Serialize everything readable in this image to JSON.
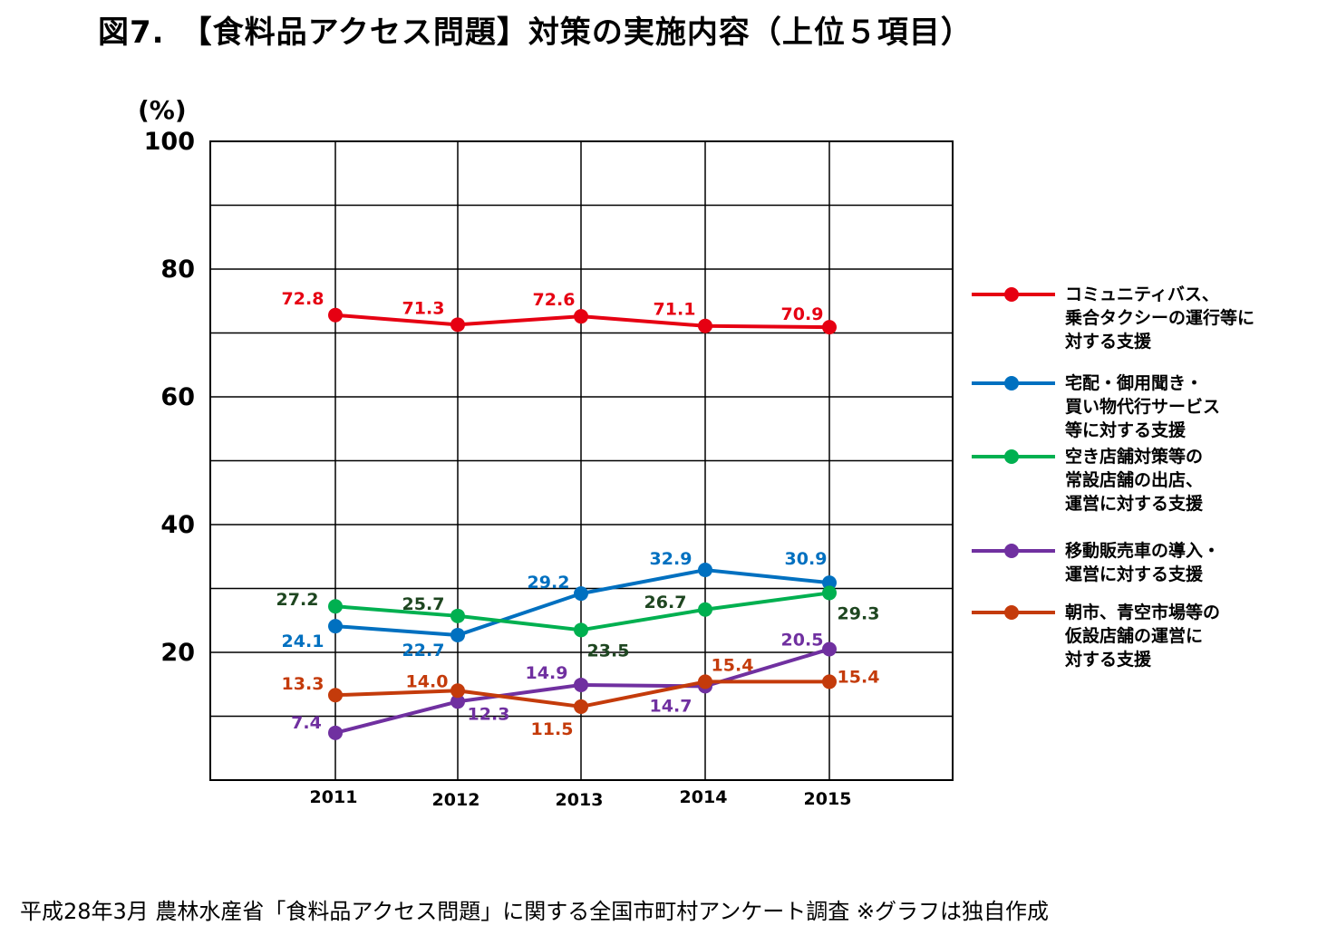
{
  "title": "図7.　【食料品アクセス問題】対策の実施内容（上位５項目）",
  "source": "平成28年3月 農林水産省「食料品アクセス問題」に関する全国市町村アンケート調査 ※グラフは独自作成",
  "chart_data": {
    "type": "line",
    "unit_label": "(%)",
    "categories": [
      "2011",
      "2012",
      "2013",
      "2014",
      "2015"
    ],
    "ylim": [
      0,
      100
    ],
    "yticks": [
      "20",
      "40",
      "60",
      "80",
      "100"
    ],
    "grid": true,
    "legend_position": "right",
    "series": [
      {
        "name": "コミュニティバス、\n乗合タクシーの運行等に\n対する支援",
        "color": "#e60012",
        "values": [
          72.8,
          71.3,
          72.6,
          71.1,
          70.9
        ],
        "value_labels": [
          "72.8",
          "71.3",
          "72.6",
          "71.1",
          "70.9"
        ]
      },
      {
        "name": "宅配・御用聞き・\n買い物代行サービス\n等に対する支援",
        "color": "#0070c0",
        "values": [
          24.1,
          22.7,
          29.2,
          32.9,
          30.9
        ],
        "value_labels": [
          "24.1",
          "22.7",
          "29.2",
          "32.9",
          "30.9"
        ]
      },
      {
        "name": "空き店舗対策等の\n常設店舗の出店、\n運営に対する支援",
        "color": "#00b050",
        "label_color": "#1e4620",
        "values": [
          27.2,
          25.7,
          23.5,
          26.7,
          29.3
        ],
        "value_labels": [
          "27.2",
          "25.7",
          "23.5",
          "26.7",
          "29.3"
        ]
      },
      {
        "name": "移動販売車の導入・\n運営に対する支援",
        "color": "#7030a0",
        "values": [
          7.4,
          12.3,
          14.9,
          14.7,
          20.5
        ],
        "value_labels": [
          "7.4",
          "12.3",
          "14.9",
          "14.7",
          "20.5"
        ]
      },
      {
        "name": "朝市、青空市場等の\n仮設店舗の運営に\n対する支援",
        "color": "#c43b0b",
        "values": [
          13.3,
          14.0,
          11.5,
          15.4,
          15.4
        ],
        "value_labels": [
          "13.3",
          "14.0",
          "11.5",
          "15.4",
          "15.4"
        ]
      }
    ]
  }
}
